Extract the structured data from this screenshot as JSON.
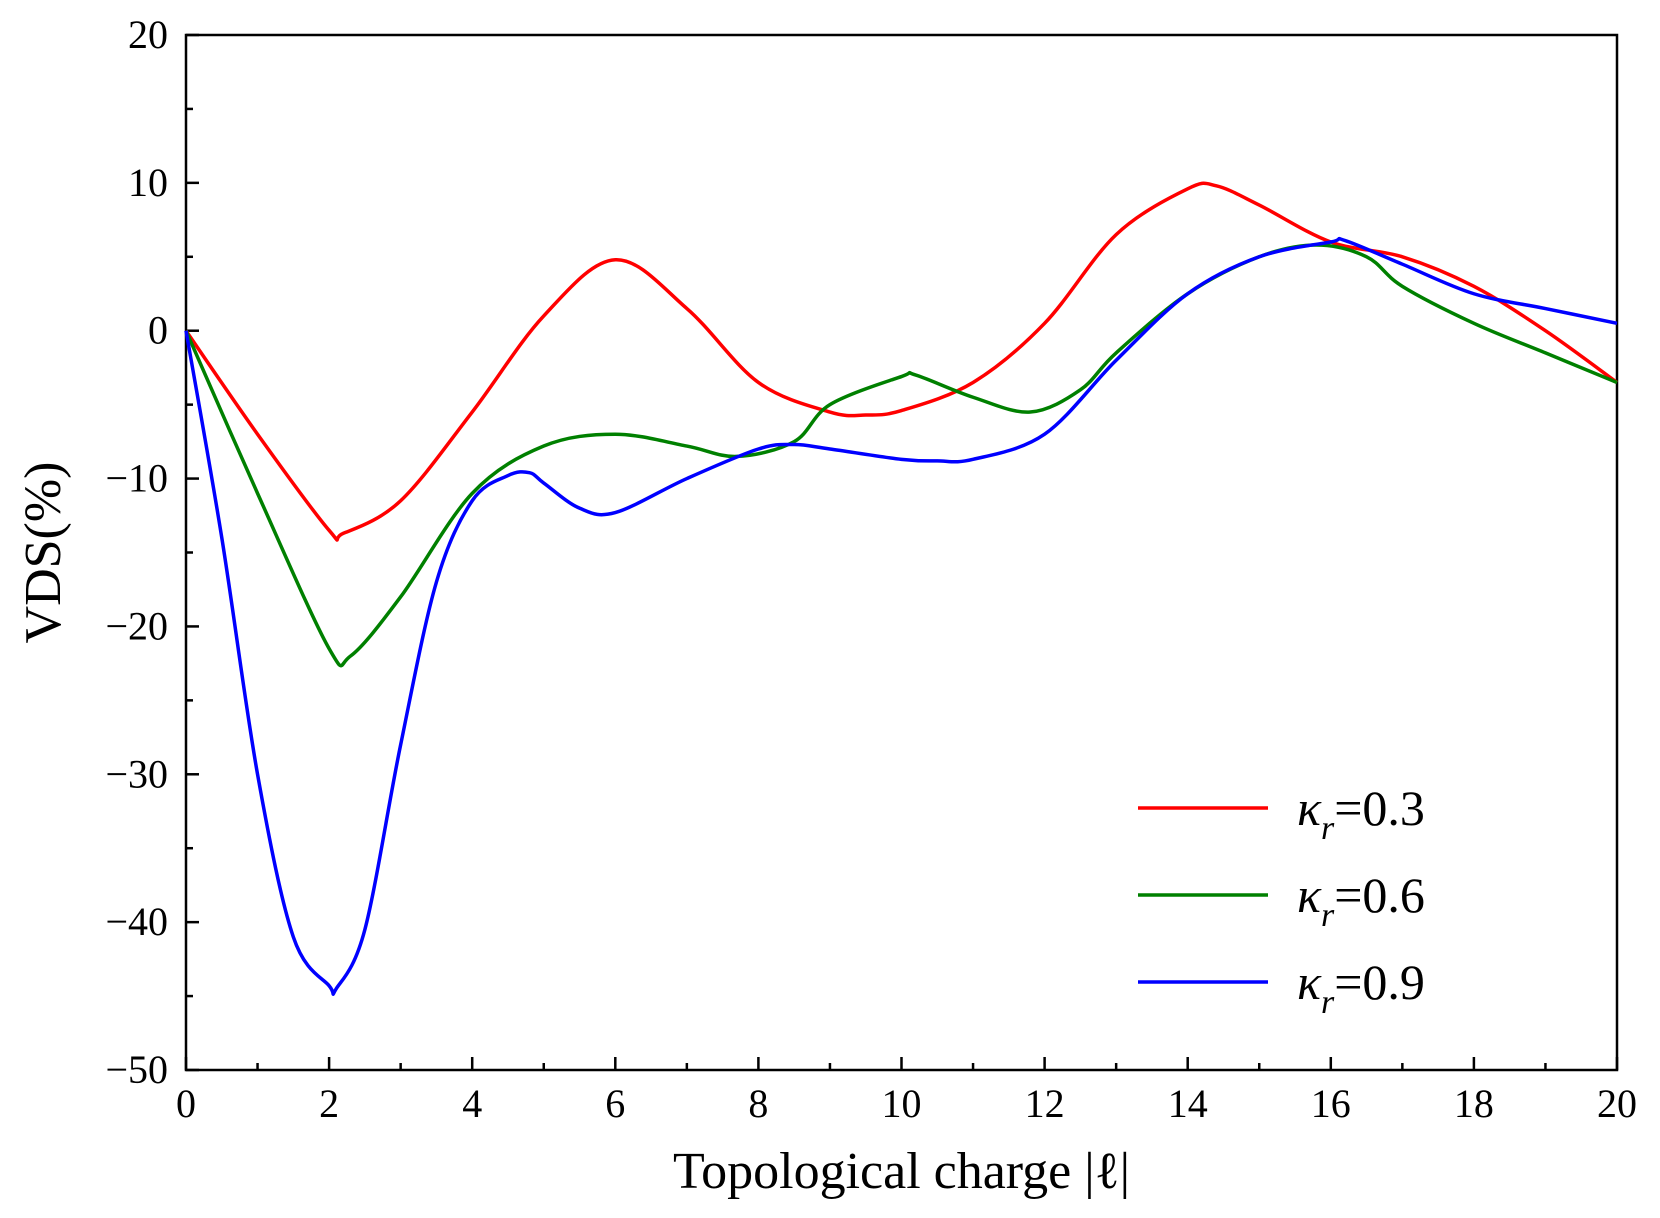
{
  "chart_data": {
    "type": "line",
    "title": "",
    "xlabel": "Topological charge |ℓ|",
    "ylabel": "VDS(%)",
    "xlim": [
      0,
      20
    ],
    "ylim": [
      -50,
      20
    ],
    "xticks": [
      "0",
      "2",
      "4",
      "6",
      "8",
      "10",
      "12",
      "14",
      "16",
      "18",
      "20"
    ],
    "yticks": [
      "20",
      "10",
      "0",
      "−10",
      "−20",
      "−30",
      "−40",
      "−50"
    ],
    "grid": false,
    "legend_position": "bottom-right",
    "series": [
      {
        "name": "κr=0.3",
        "legend_symbol": "κ",
        "legend_sub": "r",
        "legend_value": "=0.3",
        "color": "#ff0000",
        "x": [
          0,
          1,
          2,
          2.2,
          3,
          4,
          5,
          6,
          7,
          8,
          9,
          9.5,
          10,
          11,
          12,
          13,
          14,
          14.4,
          15,
          16,
          17,
          18,
          19,
          20
        ],
        "y": [
          0,
          -7,
          -13.5,
          -13.7,
          -11.5,
          -5.5,
          1,
          4.8,
          1.5,
          -3.5,
          -5.5,
          -5.7,
          -5.4,
          -3.5,
          0.5,
          6.5,
          9.6,
          9.8,
          8.5,
          6,
          5,
          3,
          0,
          -3.5
        ]
      },
      {
        "name": "κr=0.6",
        "legend_symbol": "κ",
        "legend_sub": "r",
        "legend_value": "=0.6",
        "color": "#008000",
        "x": [
          0,
          1,
          2,
          2.3,
          3,
          4,
          5,
          6,
          7,
          7.7,
          8.5,
          9,
          10,
          10.2,
          11,
          11.8,
          12.5,
          13,
          14,
          15,
          15.8,
          16.5,
          17,
          18,
          19,
          20
        ],
        "y": [
          0,
          -11,
          -21.5,
          -22,
          -18,
          -11,
          -7.8,
          -7,
          -7.8,
          -8.5,
          -7.5,
          -5,
          -3.1,
          -3,
          -4.5,
          -5.5,
          -4,
          -1.5,
          2.5,
          5,
          5.8,
          5,
          3,
          0.5,
          -1.5,
          -3.5
        ]
      },
      {
        "name": "κr=0.9",
        "legend_symbol": "κ",
        "legend_sub": "r",
        "legend_value": "=0.9",
        "color": "#0000ff",
        "x": [
          0,
          0.5,
          1,
          1.5,
          2,
          2.1,
          2.5,
          3,
          3.5,
          4,
          4.5,
          4.8,
          5,
          5.5,
          6,
          7,
          8,
          8.5,
          9,
          10,
          10.5,
          11,
          12,
          13,
          14,
          15,
          16,
          16.2,
          17,
          18,
          19,
          20
        ],
        "y": [
          0,
          -14,
          -30,
          -41,
          -44.3,
          -44.5,
          -40.5,
          -28,
          -17,
          -11.5,
          -9.8,
          -9.6,
          -10.3,
          -12,
          -12.3,
          -10,
          -8,
          -7.7,
          -8,
          -8.7,
          -8.8,
          -8.7,
          -7,
          -2,
          2.5,
          5,
          6,
          6.1,
          4.5,
          2.5,
          1.5,
          0.5
        ]
      }
    ]
  }
}
